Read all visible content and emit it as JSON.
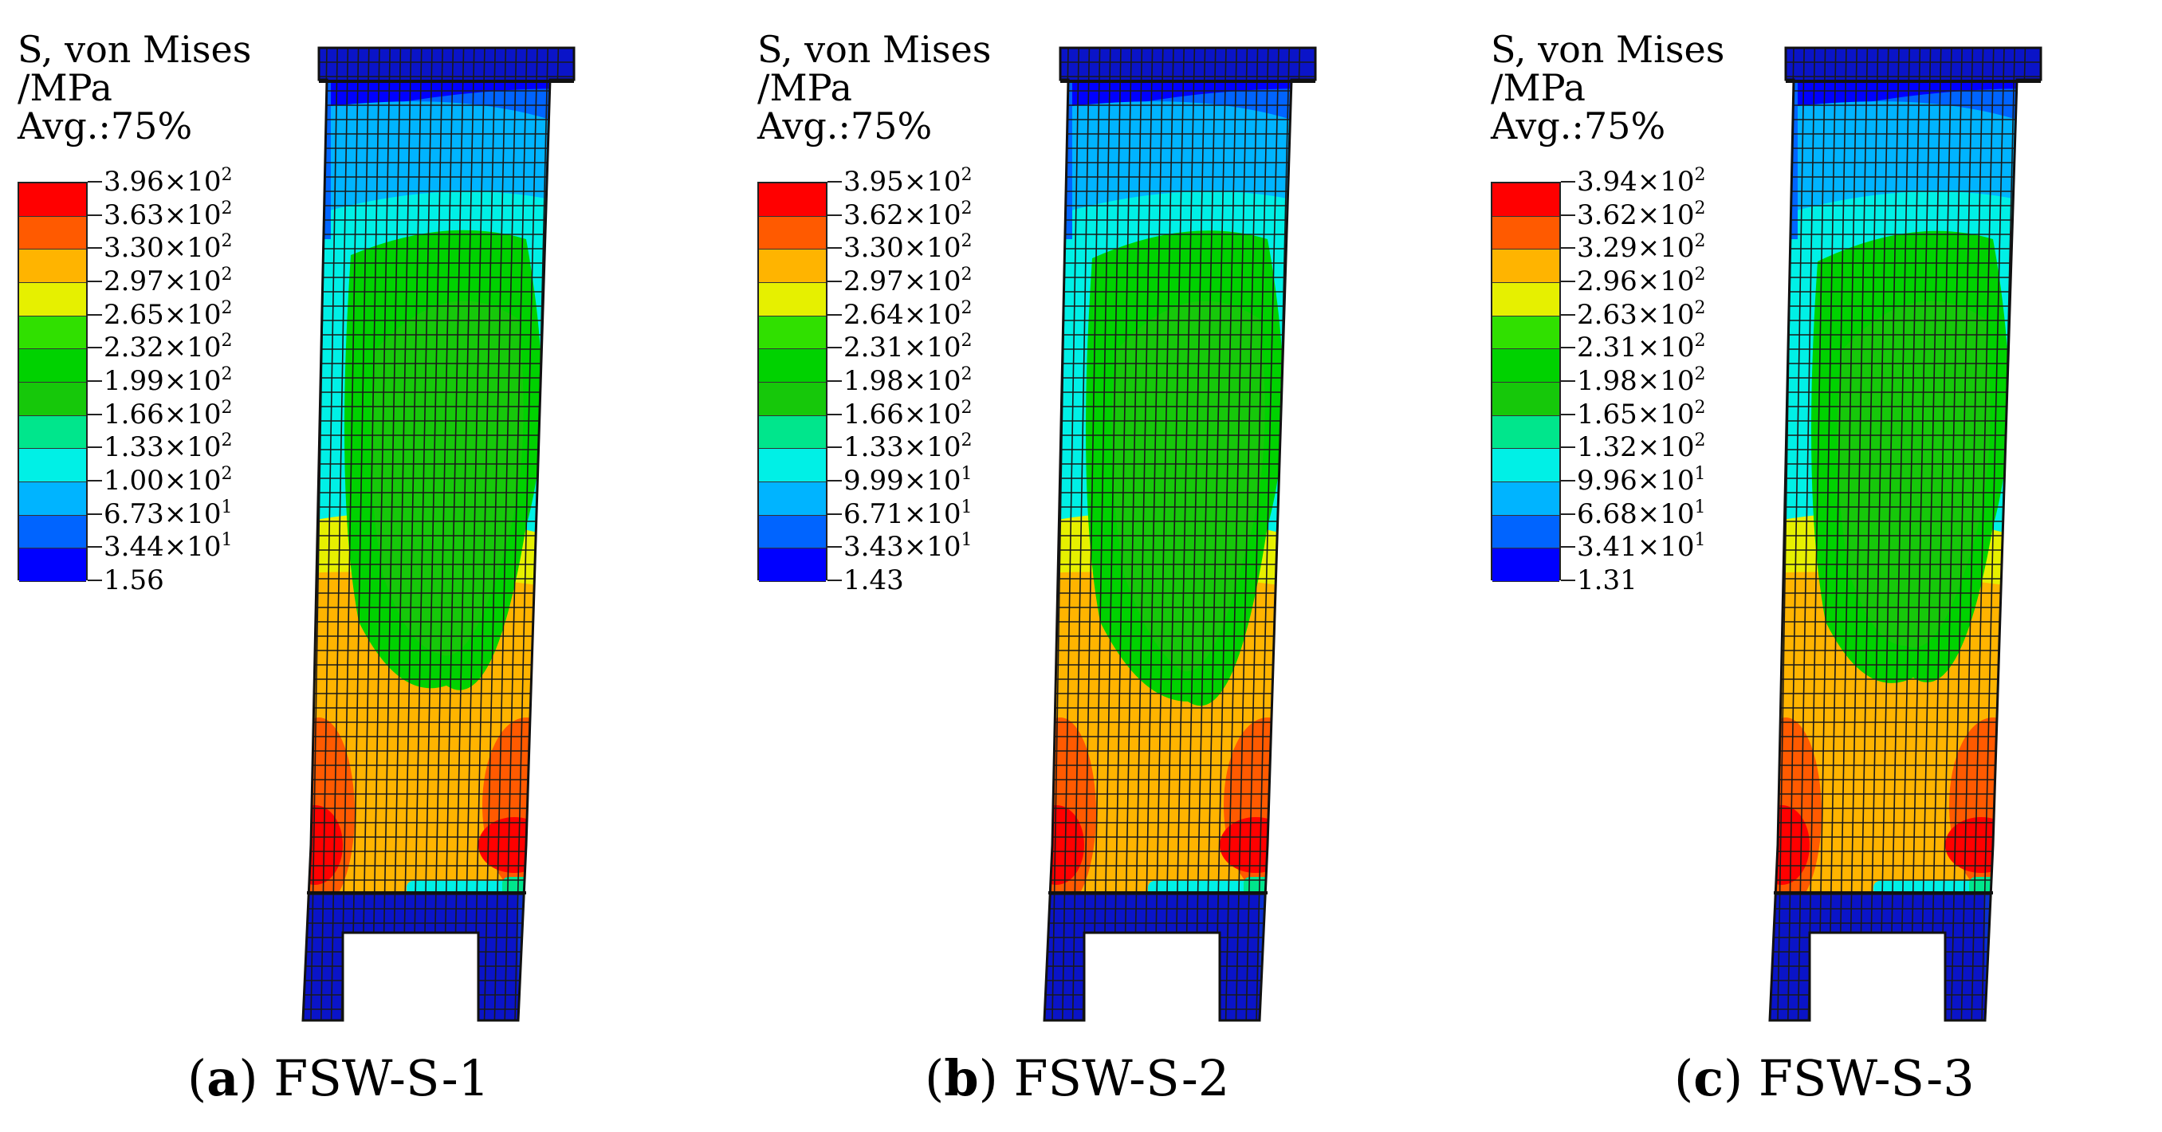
{
  "figure": {
    "panels": [
      {
        "id": "a",
        "caption_letter": "a",
        "caption_name": "FSW-S-1",
        "legend": {
          "title_line1": "S, von Mises",
          "title_line2": "/MPa",
          "title_line3": "Avg.:75%",
          "labels": [
            "3.96×10",
            "3.63×10",
            "3.30×10",
            "2.97×10",
            "2.65×10",
            "2.32×10",
            "1.99×10",
            "1.66×10",
            "1.33×10",
            "1.00×10",
            "6.73×10",
            "3.44×10",
            "1.56"
          ],
          "exponents": [
            "2",
            "2",
            "2",
            "2",
            "2",
            "2",
            "2",
            "2",
            "2",
            "2",
            "1",
            "1",
            ""
          ]
        }
      },
      {
        "id": "b",
        "caption_letter": "b",
        "caption_name": "FSW-S-2",
        "legend": {
          "title_line1": "S, von Mises",
          "title_line2": "/MPa",
          "title_line3": "Avg.:75%",
          "labels": [
            "3.95×10",
            "3.62×10",
            "3.30×10",
            "2.97×10",
            "2.64×10",
            "2.31×10",
            "1.98×10",
            "1.66×10",
            "1.33×10",
            "9.99×10",
            "6.71×10",
            "3.43×10",
            "1.43"
          ],
          "exponents": [
            "2",
            "2",
            "2",
            "2",
            "2",
            "2",
            "2",
            "2",
            "2",
            "1",
            "1",
            "1",
            ""
          ]
        }
      },
      {
        "id": "c",
        "caption_letter": "c",
        "caption_name": "FSW-S-3",
        "legend": {
          "title_line1": "S, von Mises",
          "title_line2": "/MPa",
          "title_line3": "Avg.:75%",
          "labels": [
            "3.94×10",
            "3.62×10",
            "3.29×10",
            "2.96×10",
            "2.63×10",
            "2.31×10",
            "1.98×10",
            "1.65×10",
            "1.32×10",
            "9.96×10",
            "6.68×10",
            "3.41×10",
            "1.31"
          ],
          "exponents": [
            "2",
            "2",
            "2",
            "2",
            "2",
            "2",
            "2",
            "2",
            "2",
            "1",
            "1",
            "1",
            ""
          ]
        }
      }
    ],
    "contour_colors": [
      "#ff0000",
      "#ff5a00",
      "#ffb400",
      "#e6f000",
      "#30e000",
      "#00d200",
      "#16c80a",
      "#00e68c",
      "#00f0e6",
      "#00b4ff",
      "#0064ff",
      "#0000ff"
    ],
    "mesh_line_color": "#1a1a1a",
    "base_color": "#0a14c8"
  }
}
